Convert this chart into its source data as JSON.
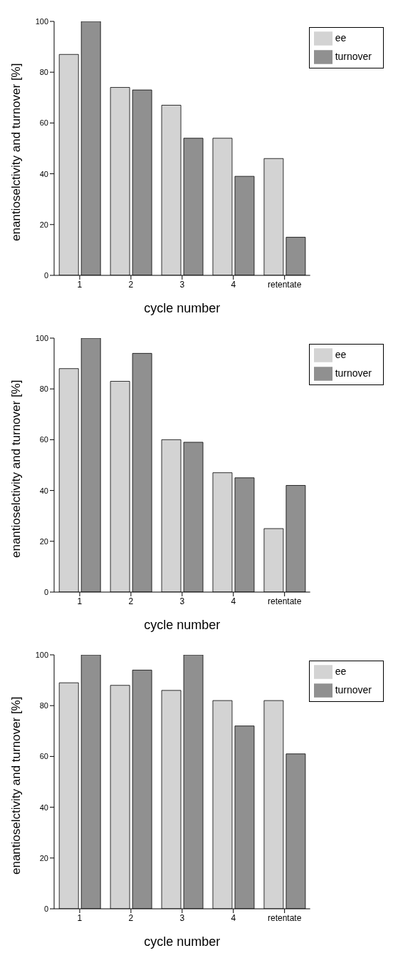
{
  "chart_data": [
    {
      "type": "bar",
      "categories": [
        "1",
        "2",
        "3",
        "4",
        "retentate"
      ],
      "xlabel": "cycle number",
      "ylabel": "enantioselctivity and turnover [%]",
      "ylim": [
        0,
        100
      ],
      "yticks": [
        0,
        20,
        40,
        60,
        80,
        100
      ],
      "legend": "top right",
      "series": [
        {
          "name": "ee",
          "color": "#d3d3d3",
          "values": [
            87,
            74,
            67,
            54,
            46
          ]
        },
        {
          "name": "turnover",
          "color": "#909090",
          "values": [
            100,
            73,
            54,
            39,
            15
          ]
        }
      ]
    },
    {
      "type": "bar",
      "categories": [
        "1",
        "2",
        "3",
        "4",
        "retentate"
      ],
      "xlabel": "cycle number",
      "ylabel": "enantioselctivity and turnover [%]",
      "ylim": [
        0,
        100
      ],
      "yticks": [
        0,
        20,
        40,
        60,
        80,
        100
      ],
      "legend": "top right",
      "series": [
        {
          "name": "ee",
          "color": "#d3d3d3",
          "values": [
            88,
            83,
            60,
            47,
            25
          ]
        },
        {
          "name": "turnover",
          "color": "#909090",
          "values": [
            100,
            94,
            59,
            45,
            42
          ]
        }
      ]
    },
    {
      "type": "bar",
      "categories": [
        "1",
        "2",
        "3",
        "4",
        "retentate"
      ],
      "xlabel": "cycle number",
      "ylabel": "enantioselctivity and turnover [%]",
      "ylim": [
        0,
        100
      ],
      "yticks": [
        0,
        20,
        40,
        60,
        80,
        100
      ],
      "legend": "top right",
      "series": [
        {
          "name": "ee",
          "color": "#d3d3d3",
          "values": [
            89,
            88,
            86,
            82,
            82
          ]
        },
        {
          "name": "turnover",
          "color": "#909090",
          "values": [
            100,
            94,
            100,
            72,
            61
          ]
        }
      ]
    }
  ]
}
